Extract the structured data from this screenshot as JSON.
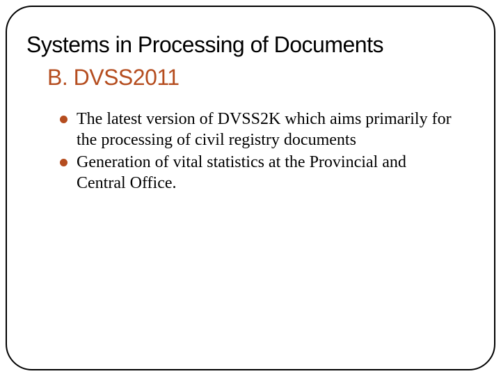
{
  "slide": {
    "title": "Systems in Processing of Documents",
    "subtitle": "B. DVSS2011",
    "bullets": [
      "The latest version of DVSS2K which aims primarily for the processing of civil registry documents",
      "Generation of vital statistics at the Provincial and Central Office."
    ],
    "colors": {
      "accent": "#b54d1f",
      "text": "#000000",
      "border": "#000000",
      "background": "#ffffff"
    },
    "typography": {
      "title_fontsize": 32,
      "subtitle_fontsize": 32,
      "body_fontsize": 24,
      "title_family": "Arial",
      "body_family": "Garamond"
    },
    "layout": {
      "border_radius": 38,
      "border_width": 2
    }
  }
}
